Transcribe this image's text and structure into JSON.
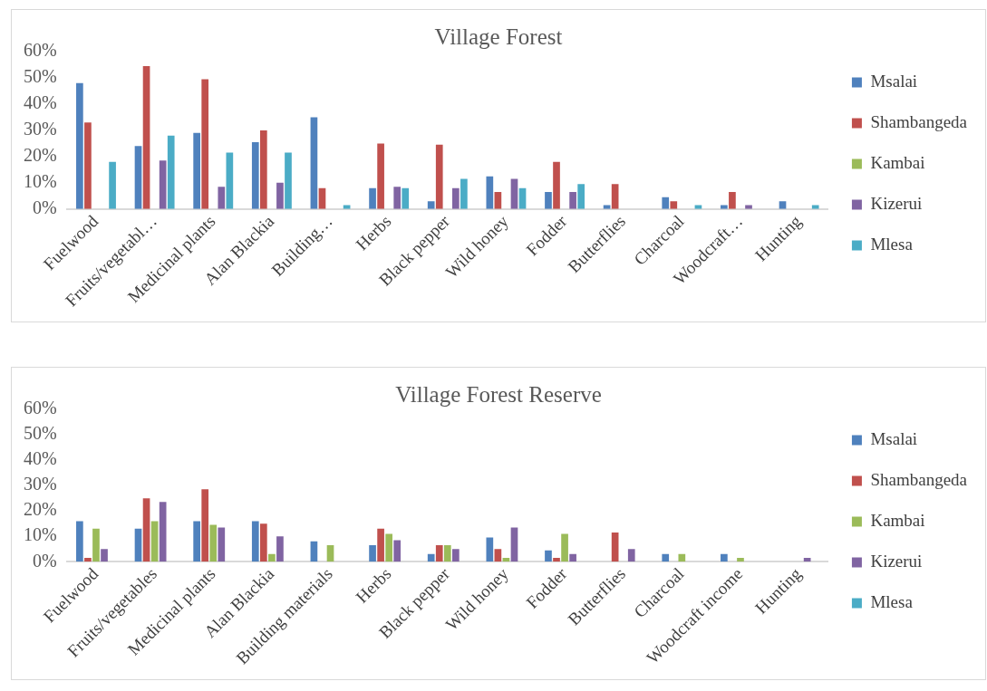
{
  "chart_data": [
    {
      "type": "bar",
      "title": "Village Forest",
      "categories": [
        "Fuelwood",
        "Fruits/vegetabl…",
        "Medicinal plants",
        "Alan Blackia",
        "Building…",
        "Herbs",
        "Black pepper",
        "Wild honey",
        "Fodder",
        "Butterflies",
        "Charcoal",
        "Woodcraft…",
        "Hunting"
      ],
      "series": [
        {
          "name": "Msalai",
          "color": "#4f81bd",
          "values": [
            48,
            24,
            29,
            25.5,
            35,
            8,
            3,
            12.5,
            6.5,
            1.5,
            4.5,
            1.5,
            3
          ]
        },
        {
          "name": "Shambangeda",
          "color": "#c0504d",
          "values": [
            33,
            54.5,
            49.5,
            30,
            8,
            25,
            24.5,
            6.5,
            18,
            9.5,
            3,
            6.5,
            null
          ]
        },
        {
          "name": "Kambai",
          "color": "#9bbb59",
          "values": [
            null,
            null,
            null,
            null,
            null,
            null,
            null,
            null,
            null,
            null,
            null,
            null,
            null
          ]
        },
        {
          "name": "Kizerui",
          "color": "#8064a2",
          "values": [
            null,
            18.5,
            8.5,
            10,
            null,
            8.5,
            8,
            11.5,
            6.5,
            null,
            null,
            1.5,
            null
          ]
        },
        {
          "name": "Mlesa",
          "color": "#4bacc6",
          "values": [
            18,
            28,
            21.5,
            21.5,
            1.5,
            8,
            11.5,
            8,
            9.5,
            null,
            1.5,
            null,
            1.5
          ]
        }
      ],
      "ylim": [
        0,
        60
      ],
      "yticks": [
        {
          "value": 0,
          "label": "0%"
        },
        {
          "value": 10,
          "label": "10%"
        },
        {
          "value": 20,
          "label": "20%"
        },
        {
          "value": 30,
          "label": "30%"
        },
        {
          "value": 40,
          "label": "40%"
        },
        {
          "value": 50,
          "label": "50%"
        },
        {
          "value": 60,
          "label": "60%"
        }
      ],
      "grid": false,
      "legend": "right"
    },
    {
      "type": "bar",
      "title": "Village Forest Reserve",
      "categories": [
        "Fuelwood",
        "Fruits/vegetables",
        "Medicinal plants",
        "Alan Blackia",
        "Building materials",
        "Herbs",
        "Black pepper",
        "Wild honey",
        "Fodder",
        "Butterflies",
        "Charcoal",
        "Woodcraft income",
        "Hunting"
      ],
      "series": [
        {
          "name": "Msalai",
          "color": "#4f81bd",
          "values": [
            16,
            13,
            16,
            16,
            8,
            6.5,
            3,
            9.5,
            4.5,
            null,
            3,
            3,
            null
          ]
        },
        {
          "name": "Shambangeda",
          "color": "#c0504d",
          "values": [
            1.5,
            25,
            28.5,
            15,
            null,
            13,
            6.5,
            5,
            1.5,
            11.5,
            null,
            null,
            null
          ]
        },
        {
          "name": "Kambai",
          "color": "#9bbb59",
          "values": [
            13,
            16,
            14.5,
            3,
            6.5,
            11,
            6.5,
            1.5,
            11,
            null,
            3,
            1.5,
            null
          ]
        },
        {
          "name": "Kizerui",
          "color": "#8064a2",
          "values": [
            5,
            23.5,
            13.5,
            10,
            null,
            8.5,
            5,
            13.5,
            3,
            5,
            null,
            null,
            1.5
          ]
        },
        {
          "name": "Mlesa",
          "color": "#4bacc6",
          "values": [
            null,
            null,
            null,
            null,
            null,
            null,
            null,
            null,
            null,
            null,
            null,
            null,
            null
          ]
        }
      ],
      "ylim": [
        0,
        60
      ],
      "yticks": [
        {
          "value": 0,
          "label": "0%"
        },
        {
          "value": 10,
          "label": "10%"
        },
        {
          "value": 20,
          "label": "20%"
        },
        {
          "value": 30,
          "label": "30%"
        },
        {
          "value": 40,
          "label": "40%"
        },
        {
          "value": 50,
          "label": "50%"
        },
        {
          "value": 60,
          "label": "60%"
        }
      ],
      "grid": false,
      "legend": "right"
    }
  ]
}
